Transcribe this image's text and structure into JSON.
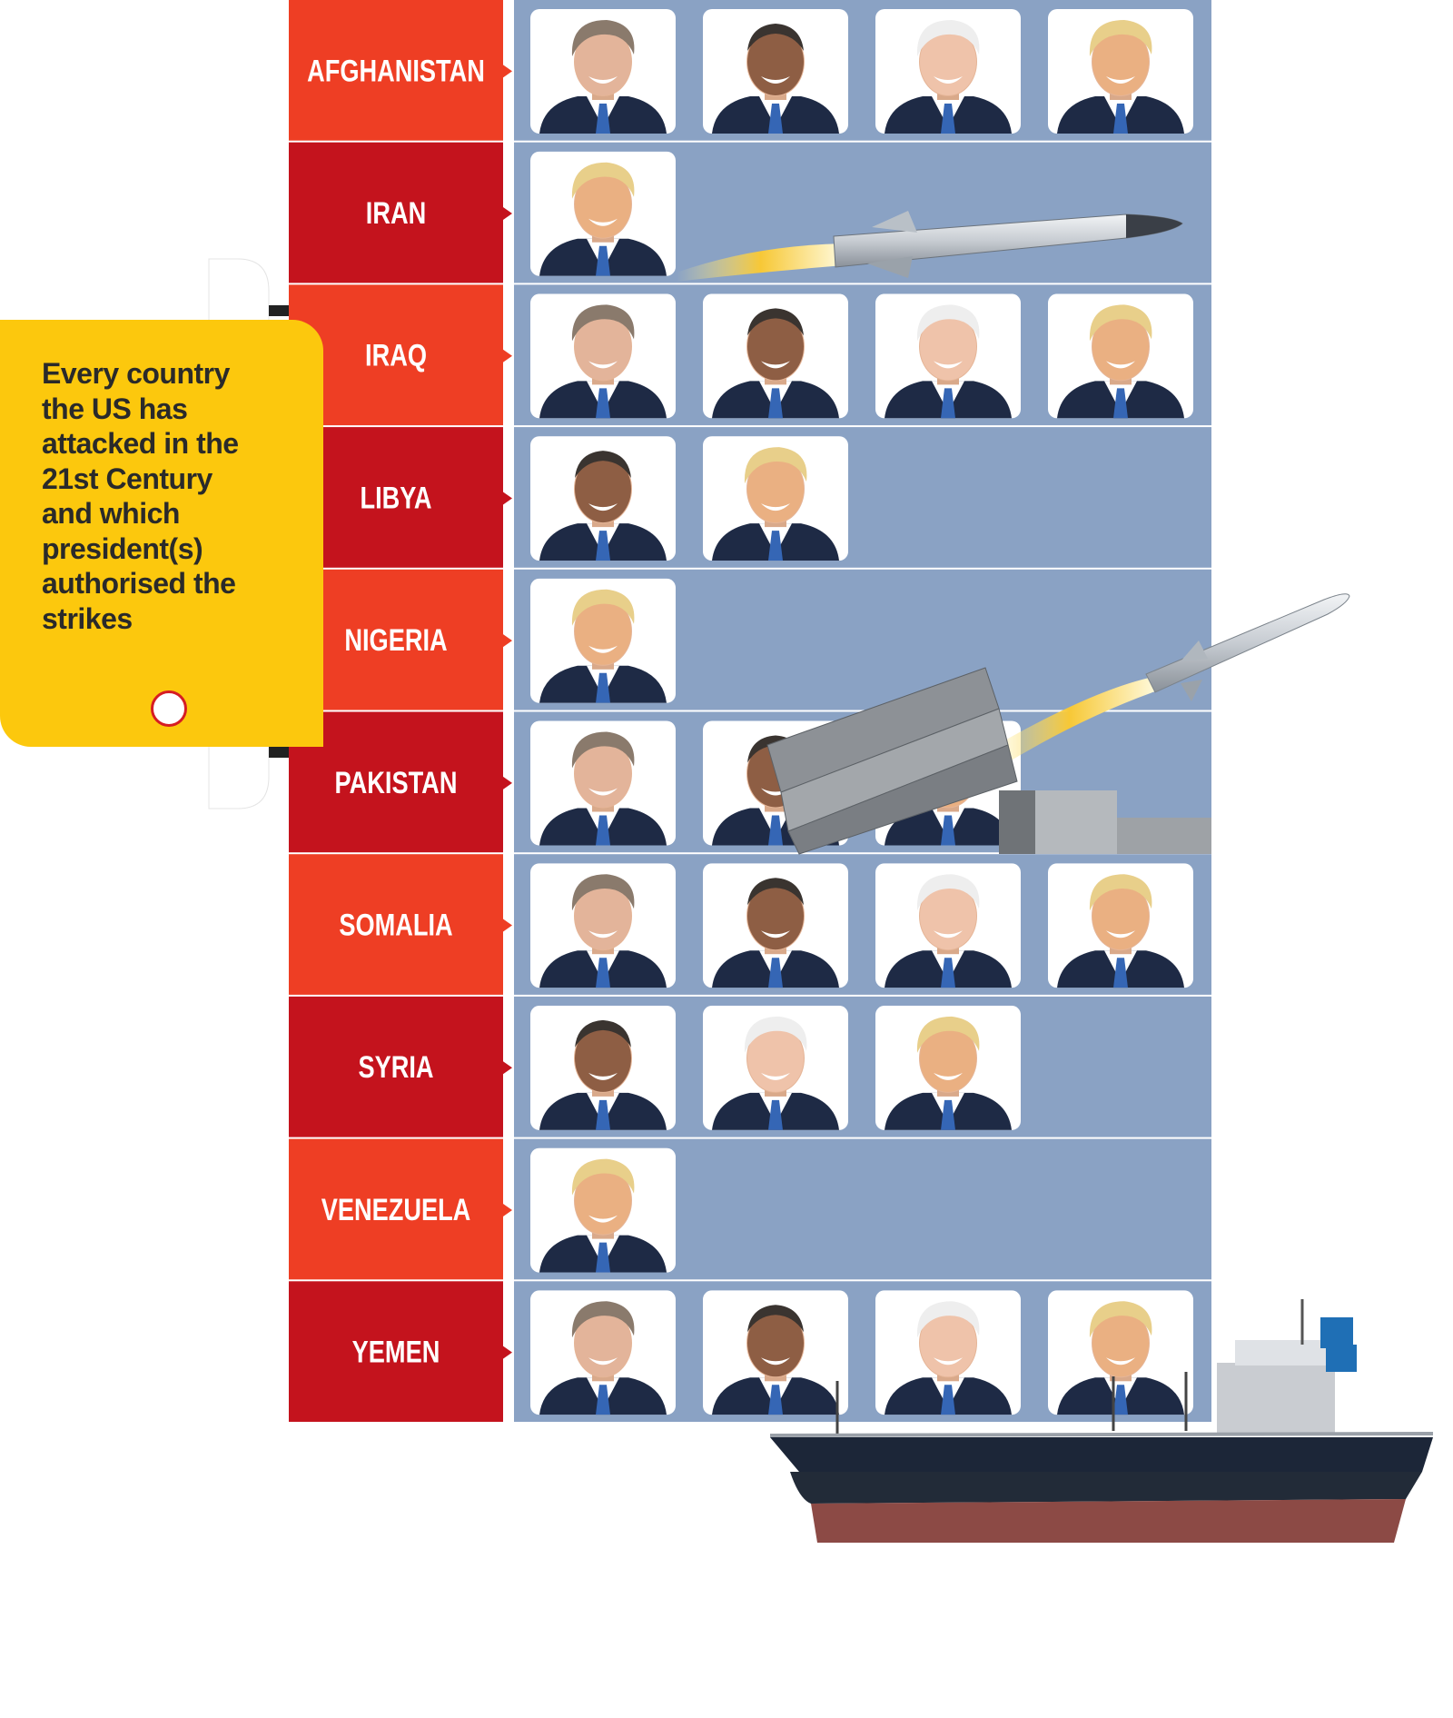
{
  "title_box": {
    "text": "Every country the US has attacked in the 21st Century and which president(s) authorised the strikes"
  },
  "rows": [
    {
      "country": "AFGHANISTAN"
    },
    {
      "country": "IRAN"
    },
    {
      "country": "IRAQ"
    },
    {
      "country": "LIBYA"
    },
    {
      "country": "NIGERIA"
    },
    {
      "country": "PAKISTAN"
    },
    {
      "country": "SOMALIA"
    },
    {
      "country": "SYRIA"
    },
    {
      "country": "VENEZUELA"
    },
    {
      "country": "YEMEN"
    }
  ]
}
